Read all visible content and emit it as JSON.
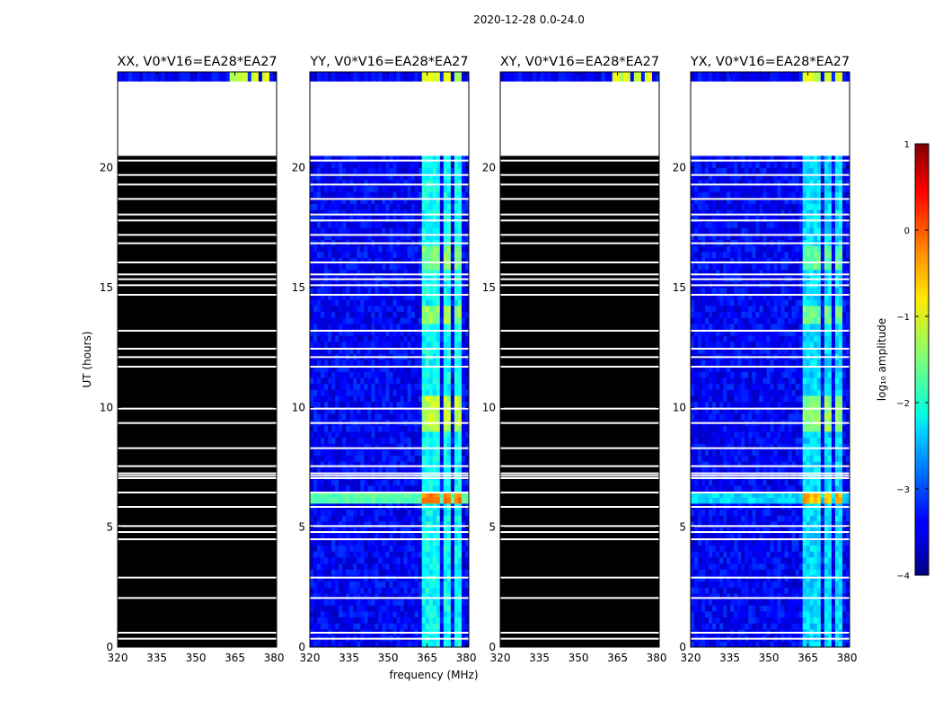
{
  "chart_data": {
    "type": "heatmap",
    "suptitle": "2020-12-28 0.0-24.0",
    "xlabel": "frequency (MHz)",
    "ylabel": "UT (hours)",
    "xlim": [
      320,
      381
    ],
    "ylim": [
      0,
      24
    ],
    "x_ticks": [
      "320",
      "335",
      "350",
      "365",
      "380"
    ],
    "y_ticks": [
      "0",
      "5",
      "10",
      "15",
      "20"
    ],
    "colorbar": {
      "label": "log₁₀ amplitude",
      "range": [
        -4,
        1
      ],
      "ticks": [
        "1",
        "0",
        "−1",
        "−2",
        "−3",
        "−4"
      ],
      "colormap": "jet"
    },
    "panels": [
      {
        "title": "XX, V0*V16=EA28*EA27",
        "pol": "XX",
        "blank": true,
        "cross": false
      },
      {
        "title": "YY, V0*V16=EA28*EA27",
        "pol": "YY",
        "blank": false,
        "cross": false
      },
      {
        "title": "XY, V0*V16=EA28*EA27",
        "pol": "XY",
        "blank": true,
        "cross": true
      },
      {
        "title": "YX, V0*V16=EA28*EA27",
        "pol": "YX",
        "blank": false,
        "cross": true
      }
    ],
    "no_data_hours": [
      20.5,
      23.6
    ],
    "flagged_hours": [
      0.35,
      0.6,
      2.05,
      2.9,
      4.5,
      4.8,
      5.05,
      5.85,
      6.45,
      7.05,
      7.15,
      7.25,
      7.55,
      8.3,
      9.35,
      9.95,
      11.7,
      12.1,
      12.45,
      13.2,
      14.7,
      15.1,
      15.35,
      15.55,
      16.05,
      16.85,
      17.2,
      17.8,
      18.05,
      18.7,
      19.3,
      19.7,
      20.3
    ],
    "signal_channels_MHz": [
      [
        363,
        366.5
      ],
      [
        367.5,
        370.5
      ],
      [
        371.5,
        374.5
      ],
      [
        375.5,
        378.5
      ]
    ],
    "bright_hour_bands": [
      {
        "from": 6.1,
        "to": 6.55,
        "log_amp": -0.3,
        "broadband_log_amp": -1.7
      },
      {
        "from": 15.7,
        "to": 16.8,
        "log_amp": -1.5
      },
      {
        "from": 9.0,
        "to": 10.5,
        "log_amp": -1.2
      },
      {
        "from": 13.6,
        "to": 14.2,
        "log_amp": -1.4
      },
      {
        "from": 23.6,
        "to": 24.0,
        "log_amp": -1.1
      }
    ],
    "background_log_amp": -3.4
  }
}
